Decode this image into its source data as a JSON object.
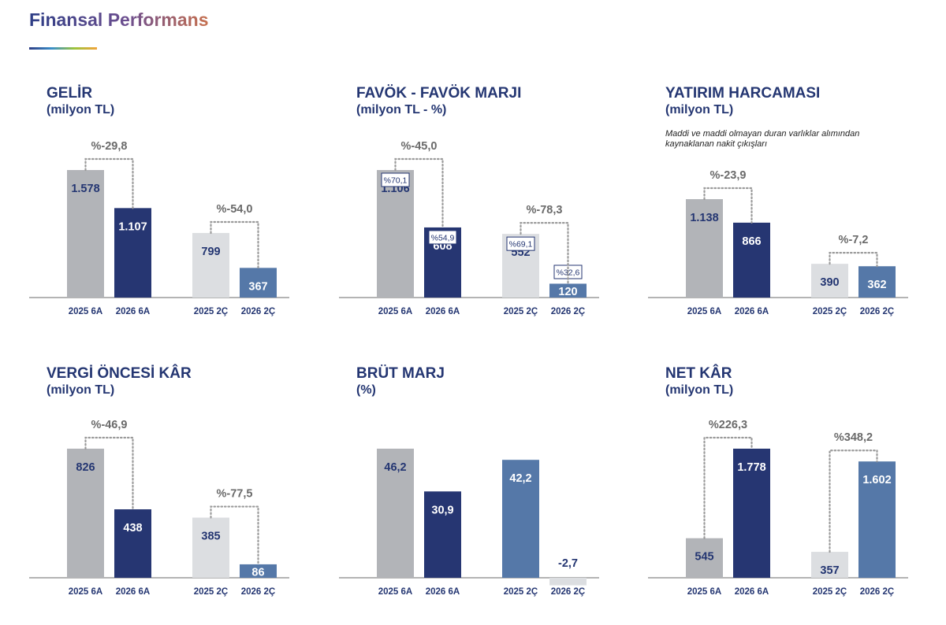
{
  "page": {
    "title": "Finansal Performans"
  },
  "colors": {
    "grey": "#b2b4b8",
    "navy": "#263672",
    "light": "#dcdee1",
    "blue": "#5578a8",
    "axis": "#888888",
    "dots": "#9a9a9a",
    "title": "#243672"
  },
  "chart_data": [
    {
      "type": "bar",
      "title": "GELİR",
      "unit": "(milyon TL)",
      "note": "",
      "categories": [
        "2025 6A",
        "2026 6A",
        "2025 2Ç",
        "2026 2Ç"
      ],
      "values": [
        1578,
        1107,
        799,
        367
      ],
      "value_labels": [
        "1.578",
        "1.107",
        "799",
        "367"
      ],
      "bar_colors": [
        "grey",
        "navy",
        "light",
        "blue"
      ],
      "margin_labels": [],
      "changes": [
        {
          "from": 0,
          "to": 1,
          "label": "%-29,8"
        },
        {
          "from": 2,
          "to": 3,
          "label": "%-54,0"
        }
      ],
      "ylim": [
        0,
        1578
      ]
    },
    {
      "type": "bar",
      "title": "FAVÖK - FAVÖK MARJI",
      "unit": "(milyon TL - %)",
      "note": "",
      "categories": [
        "2025 6A",
        "2026 6A",
        "2025 2Ç",
        "2026 2Ç"
      ],
      "values": [
        1106,
        608,
        552,
        120
      ],
      "value_labels": [
        "1.106",
        "608",
        "552",
        "120"
      ],
      "bar_colors": [
        "grey",
        "navy",
        "light",
        "blue"
      ],
      "margin_labels": [
        "%70,1",
        "%54,9",
        "%69,1",
        "%32,6"
      ],
      "changes": [
        {
          "from": 0,
          "to": 1,
          "label": "%-45,0"
        },
        {
          "from": 2,
          "to": 3,
          "label": "%-78,3"
        }
      ],
      "ylim": [
        0,
        1106
      ]
    },
    {
      "type": "bar",
      "title": "YATIRIM HARCAMASI",
      "unit": "(milyon TL)",
      "note": "Maddi ve maddi olmayan duran varlıklar alımından kaynaklanan nakit çıkışları",
      "categories": [
        "2025 6A",
        "2026 6A",
        "2025 2Ç",
        "2026 2Ç"
      ],
      "values": [
        1138,
        866,
        390,
        362
      ],
      "value_labels": [
        "1.138",
        "866",
        "390",
        "362"
      ],
      "bar_colors": [
        "grey",
        "navy",
        "light",
        "blue"
      ],
      "margin_labels": [],
      "changes": [
        {
          "from": 0,
          "to": 1,
          "label": "%-23,9"
        },
        {
          "from": 2,
          "to": 3,
          "label": "%-7,2"
        }
      ],
      "ylim": [
        0,
        1138
      ]
    },
    {
      "type": "bar",
      "title": "VERGİ ÖNCESİ KÂR",
      "unit": "(milyon TL)",
      "note": "",
      "categories": [
        "2025 6A",
        "2026 6A",
        "2025 2Ç",
        "2026 2Ç"
      ],
      "values": [
        826,
        438,
        385,
        86
      ],
      "value_labels": [
        "826",
        "438",
        "385",
        "86"
      ],
      "bar_colors": [
        "grey",
        "navy",
        "light",
        "blue"
      ],
      "margin_labels": [],
      "changes": [
        {
          "from": 0,
          "to": 1,
          "label": "%-46,9"
        },
        {
          "from": 2,
          "to": 3,
          "label": "%-77,5"
        }
      ],
      "ylim": [
        0,
        826
      ]
    },
    {
      "type": "bar",
      "title": "BRÜT MARJ",
      "unit": "(%)",
      "note": "",
      "categories": [
        "2025 6A",
        "2026 6A",
        "2025 2Ç",
        "2026 2Ç"
      ],
      "values": [
        46.2,
        30.9,
        42.2,
        -2.7
      ],
      "value_labels": [
        "46,2",
        "30,9",
        "42,2",
        "-2,7"
      ],
      "bar_colors": [
        "grey",
        "navy",
        "blue",
        "light"
      ],
      "margin_labels": [],
      "changes": [],
      "ylim": [
        -2.7,
        46.2
      ]
    },
    {
      "type": "bar",
      "title": "NET KÂR",
      "unit": "(milyon TL)",
      "note": "",
      "categories": [
        "2025 6A",
        "2026 6A",
        "2025 2Ç",
        "2026 2Ç"
      ],
      "values": [
        545,
        1778,
        357,
        1602
      ],
      "value_labels": [
        "545",
        "1.778",
        "357",
        "1.602"
      ],
      "bar_colors": [
        "grey",
        "navy",
        "light",
        "blue"
      ],
      "margin_labels": [],
      "changes": [
        {
          "from": 0,
          "to": 1,
          "label": "%226,3"
        },
        {
          "from": 2,
          "to": 3,
          "label": "%348,2"
        }
      ],
      "ylim": [
        0,
        1778
      ]
    }
  ]
}
